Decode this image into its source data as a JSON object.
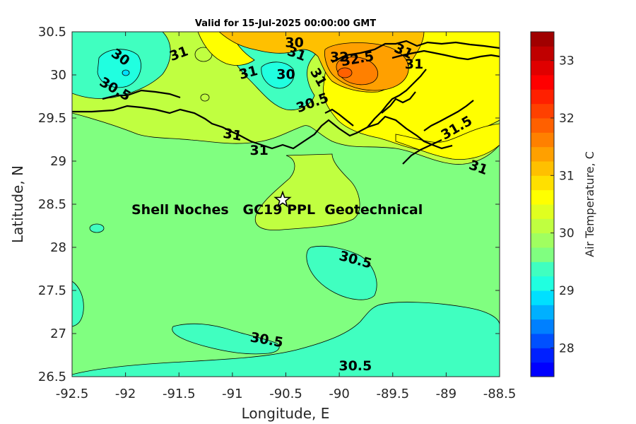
{
  "title": "Valid for 15-Jul-2025 00:00:00 GMT",
  "x_axis": {
    "label": "Longitude, E",
    "range": [
      -92.5,
      -88.5
    ],
    "ticks": [
      -92.5,
      -92,
      -91.5,
      -91,
      -90.5,
      -90,
      -89.5,
      -89,
      -88.5
    ],
    "tick_labels": [
      "-92.5",
      "-92",
      "-91.5",
      "-91",
      "-90.5",
      "-90",
      "-89.5",
      "-89",
      "-88.5"
    ]
  },
  "y_axis": {
    "label": "Latitude, N",
    "range": [
      26.5,
      30.5
    ],
    "ticks": [
      26.5,
      27,
      27.5,
      28,
      28.5,
      29,
      29.5,
      30,
      30.5
    ],
    "tick_labels": [
      "26.5",
      "27",
      "27.5",
      "28",
      "28.5",
      "29",
      "29.5",
      "30",
      "30.5"
    ]
  },
  "colorbar": {
    "label": "Air Temperature, C",
    "min": 27.5,
    "max": 33.5,
    "step": 0.25,
    "tick_values": [
      28,
      29,
      30,
      31,
      32,
      33
    ],
    "tick_labels": [
      "28",
      "29",
      "30",
      "31",
      "32",
      "33"
    ],
    "colors": [
      "#0000ff",
      "#0020ff",
      "#0050ff",
      "#0080ff",
      "#00b0ff",
      "#00e0ff",
      "#20ffe0",
      "#40ffc0",
      "#80ff80",
      "#a0ff60",
      "#c0ff40",
      "#e0ff20",
      "#ffff00",
      "#ffe000",
      "#ffc000",
      "#ffa000",
      "#ff8000",
      "#ff6000",
      "#ff4000",
      "#ff2000",
      "#ff0000",
      "#e00000",
      "#c00000",
      "#a00000"
    ]
  },
  "site": {
    "name": "Shell Noches   GC19 PPL  Geotechnical",
    "lon": -90.53,
    "lat": 28.55
  },
  "contour_labels": [
    {
      "text": "30",
      "lon": -92.05,
      "lat": 30.2,
      "angle": 35
    },
    {
      "text": "31",
      "lon": -91.5,
      "lat": 30.24,
      "angle": -20
    },
    {
      "text": "30.5",
      "lon": -92.1,
      "lat": 29.83,
      "angle": 30
    },
    {
      "text": "31",
      "lon": -90.85,
      "lat": 30.02,
      "angle": -15
    },
    {
      "text": "30",
      "lon": -90.5,
      "lat": 30.0,
      "angle": 0
    },
    {
      "text": "30",
      "lon": -90.42,
      "lat": 30.37,
      "angle": 0
    },
    {
      "text": "31",
      "lon": -90.4,
      "lat": 30.24,
      "angle": 20
    },
    {
      "text": "31",
      "lon": -90.2,
      "lat": 29.97,
      "angle": 60
    },
    {
      "text": "32",
      "lon": -90.0,
      "lat": 30.2,
      "angle": 0
    },
    {
      "text": "32.5",
      "lon": -89.83,
      "lat": 30.18,
      "angle": -10
    },
    {
      "text": "31",
      "lon": -89.4,
      "lat": 30.27,
      "angle": 25
    },
    {
      "text": "31",
      "lon": -89.3,
      "lat": 30.12,
      "angle": 0
    },
    {
      "text": "30.5",
      "lon": -90.25,
      "lat": 29.67,
      "angle": -20
    },
    {
      "text": "31",
      "lon": -91.0,
      "lat": 29.3,
      "angle": 10
    },
    {
      "text": "31",
      "lon": -90.75,
      "lat": 29.12,
      "angle": 0
    },
    {
      "text": "31.5",
      "lon": -88.9,
      "lat": 29.38,
      "angle": -30
    },
    {
      "text": "31",
      "lon": -88.7,
      "lat": 28.92,
      "angle": 20
    },
    {
      "text": "30.5",
      "lon": -89.85,
      "lat": 27.85,
      "angle": 15
    },
    {
      "text": "30.5",
      "lon": -90.68,
      "lat": 26.92,
      "angle": 10
    },
    {
      "text": "30.5",
      "lon": -89.85,
      "lat": 26.62,
      "angle": 0
    }
  ]
}
